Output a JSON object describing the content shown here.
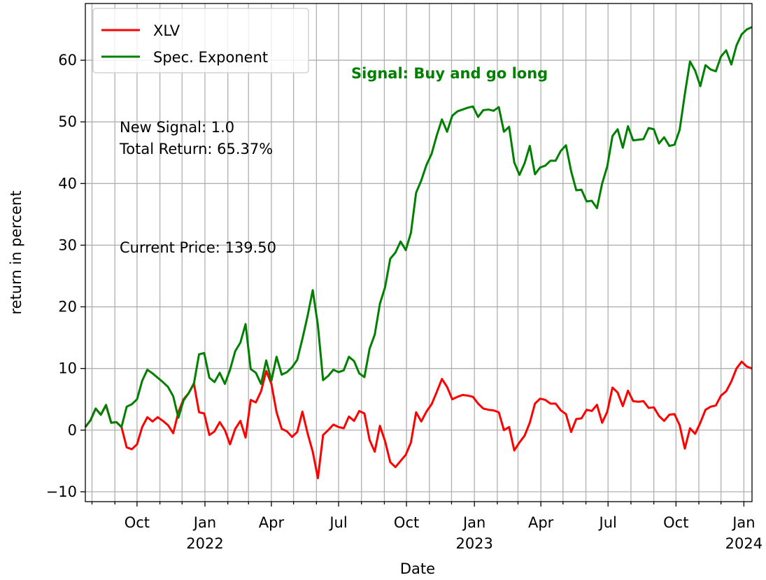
{
  "chart_data": {
    "type": "line",
    "xlabel": "Date",
    "ylabel": "return in percent",
    "annotations": [
      "Signal: Buy and go long",
      "New Signal: 1.0",
      "Total Return: 65.37%",
      "Current Price: 139.50"
    ],
    "annotation_color": "#008000",
    "x": [
      "2021-07-23",
      "2021-07-30",
      "2021-08-06",
      "2021-08-13",
      "2021-08-20",
      "2021-08-27",
      "2021-09-03",
      "2021-09-10",
      "2021-09-17",
      "2021-09-24",
      "2021-10-01",
      "2021-10-08",
      "2021-10-15",
      "2021-10-22",
      "2021-10-29",
      "2021-11-05",
      "2021-11-12",
      "2021-11-19",
      "2021-11-26",
      "2021-12-03",
      "2021-12-10",
      "2021-12-17",
      "2021-12-24",
      "2021-12-31",
      "2022-01-07",
      "2022-01-14",
      "2022-01-21",
      "2022-01-28",
      "2022-02-04",
      "2022-02-11",
      "2022-02-18",
      "2022-02-25",
      "2022-03-04",
      "2022-03-11",
      "2022-03-18",
      "2022-03-25",
      "2022-04-01",
      "2022-04-08",
      "2022-04-15",
      "2022-04-22",
      "2022-04-29",
      "2022-05-06",
      "2022-05-13",
      "2022-05-20",
      "2022-05-27",
      "2022-06-03",
      "2022-06-10",
      "2022-06-17",
      "2022-06-24",
      "2022-07-01",
      "2022-07-08",
      "2022-07-15",
      "2022-07-22",
      "2022-07-29",
      "2022-08-05",
      "2022-08-12",
      "2022-08-19",
      "2022-08-26",
      "2022-09-02",
      "2022-09-09",
      "2022-09-16",
      "2022-09-23",
      "2022-09-30",
      "2022-10-07",
      "2022-10-14",
      "2022-10-21",
      "2022-10-28",
      "2022-11-04",
      "2022-11-11",
      "2022-11-18",
      "2022-11-25",
      "2022-12-02",
      "2022-12-09",
      "2022-12-16",
      "2022-12-23",
      "2022-12-30",
      "2023-01-06",
      "2023-01-13",
      "2023-01-20",
      "2023-01-27",
      "2023-02-03",
      "2023-02-10",
      "2023-02-17",
      "2023-02-24",
      "2023-03-03",
      "2023-03-10",
      "2023-03-17",
      "2023-03-24",
      "2023-03-31",
      "2023-04-07",
      "2023-04-14",
      "2023-04-21",
      "2023-04-28",
      "2023-05-05",
      "2023-05-12",
      "2023-05-19",
      "2023-05-26",
      "2023-06-02",
      "2023-06-09",
      "2023-06-16",
      "2023-06-23",
      "2023-06-30",
      "2023-07-07",
      "2023-07-14",
      "2023-07-21",
      "2023-07-28",
      "2023-08-04",
      "2023-08-11",
      "2023-08-18",
      "2023-08-25",
      "2023-09-01",
      "2023-09-08",
      "2023-09-15",
      "2023-09-22",
      "2023-09-29",
      "2023-10-06",
      "2023-10-13",
      "2023-10-20",
      "2023-10-27",
      "2023-11-03",
      "2023-11-10",
      "2023-11-17",
      "2023-11-24",
      "2023-12-01",
      "2023-12-08",
      "2023-12-15",
      "2023-12-22",
      "2023-12-29",
      "2024-01-05",
      "2024-01-12"
    ],
    "series": [
      {
        "name": "XLV",
        "color": "#ff0000",
        "values": [
          0.5,
          1.6,
          3.5,
          2.5,
          4,
          1.2,
          1.3,
          0.5,
          -2.8,
          -3.1,
          -2.3,
          0.5,
          2.1,
          1.4,
          2.1,
          1.5,
          0.8,
          -0.5,
          2.9,
          5,
          6,
          7.6,
          2.9,
          2.7,
          -0.8,
          -0.2,
          1.3,
          0,
          -2.3,
          0.2,
          1.5,
          -1.2,
          4.9,
          4.5,
          6.3,
          9.6,
          7.5,
          2.9,
          0.2,
          -0.2,
          -1.1,
          -0.3,
          3,
          -0.5,
          -3.5,
          -7.8,
          -0.8,
          0,
          0.9,
          0.5,
          0.3,
          2.2,
          1.5,
          3.1,
          2.7,
          -1.6,
          -3.5,
          0.7,
          -1.8,
          -5.2,
          -6,
          -5,
          -4,
          -2,
          2.9,
          1.4,
          3,
          4.2,
          6.2,
          8.3,
          7,
          5,
          5.4,
          5.7,
          5.6,
          5.4,
          4.3,
          3.5,
          3.3,
          3.2,
          2.9,
          0,
          0.5,
          -3.3,
          -2,
          -0.9,
          1.2,
          4.3,
          5.1,
          4.9,
          4.3,
          4.3,
          3.2,
          2.6,
          -0.3,
          1.8,
          1.9,
          3.3,
          3.1,
          4.1,
          1.2,
          3,
          6.9,
          6.1,
          3.9,
          6.4,
          4.7,
          4.6,
          4.7,
          3.6,
          3.7,
          2.3,
          1.5,
          2.5,
          2.6,
          0.8,
          -3,
          0.3,
          -0.6,
          1.2,
          3.3,
          3.8,
          4,
          5.6,
          6.3,
          7.9,
          10,
          11.1,
          10.3,
          10
        ]
      },
      {
        "name": "Spec. Exponent",
        "color": "#008000",
        "values": [
          0.5,
          1.6,
          3.5,
          2.5,
          4.1,
          1.2,
          1.3,
          0.5,
          3.8,
          4.2,
          5,
          8,
          9.8,
          9.2,
          8.5,
          7.8,
          7,
          5.5,
          2,
          4.8,
          6,
          7.5,
          12.3,
          12.5,
          8.5,
          7.8,
          9.3,
          7.5,
          9.8,
          12.8,
          14.2,
          17.2,
          9.9,
          9.3,
          7.5,
          11.3,
          8,
          11.9,
          9,
          9.4,
          10.2,
          11.4,
          14.8,
          18.5,
          22.7,
          17,
          8.1,
          8.8,
          9.8,
          9.4,
          9.7,
          11.9,
          11.2,
          9.2,
          8.6,
          13.2,
          15.5,
          20.5,
          23.2,
          27.8,
          28.8,
          30.6,
          29.2,
          32,
          38.5,
          40.5,
          43,
          44.8,
          47.8,
          50.4,
          48.4,
          51,
          51.7,
          52,
          52.3,
          52.5,
          50.8,
          51.9,
          52,
          51.8,
          52.4,
          48.4,
          49.2,
          43.4,
          41.4,
          43.3,
          46.1,
          41.5,
          42.6,
          42.9,
          43.7,
          43.7,
          45.3,
          46.2,
          42,
          38.9,
          39,
          37.1,
          37.2,
          36,
          40,
          42.8,
          47.7,
          48.8,
          45.8,
          49.3,
          47,
          47.1,
          47.2,
          49,
          48.8,
          46.5,
          47.5,
          46.1,
          46.3,
          48.7,
          54.5,
          59.8,
          58.3,
          55.8,
          59.2,
          58.5,
          58.2,
          60.6,
          61.6,
          59.3,
          62.4,
          64.2,
          65,
          65.37
        ]
      }
    ],
    "xlim": [
      "2021-07-23",
      "2024-01-12"
    ],
    "xticks": [
      {
        "value": "2021-10-01",
        "label": "Oct"
      },
      {
        "value": "2022-01-01",
        "label": "Jan",
        "year": "2022"
      },
      {
        "value": "2022-04-01",
        "label": "Apr"
      },
      {
        "value": "2022-07-01",
        "label": "Jul"
      },
      {
        "value": "2022-10-01",
        "label": "Oct"
      },
      {
        "value": "2023-01-01",
        "label": "Jan",
        "year": "2023"
      },
      {
        "value": "2023-04-01",
        "label": "Apr"
      },
      {
        "value": "2023-07-01",
        "label": "Jul"
      },
      {
        "value": "2023-10-01",
        "label": "Oct"
      },
      {
        "value": "2024-01-01",
        "label": "Jan",
        "year": "2024"
      }
    ],
    "xminor": [
      "2021-08-01",
      "2021-09-01",
      "2021-11-01",
      "2021-12-01",
      "2022-02-01",
      "2022-03-01",
      "2022-05-01",
      "2022-06-01",
      "2022-08-01",
      "2022-09-01",
      "2022-11-01",
      "2022-12-01",
      "2023-02-01",
      "2023-03-01",
      "2023-05-01",
      "2023-06-01",
      "2023-08-01",
      "2023-09-01",
      "2023-11-01",
      "2023-12-01"
    ],
    "ylim": [
      -11.6,
      69.2
    ],
    "yticks": [
      {
        "value": -10,
        "label": "−10"
      },
      0,
      10,
      20,
      30,
      40,
      50,
      60
    ],
    "grid": true,
    "legend": "upper left"
  }
}
